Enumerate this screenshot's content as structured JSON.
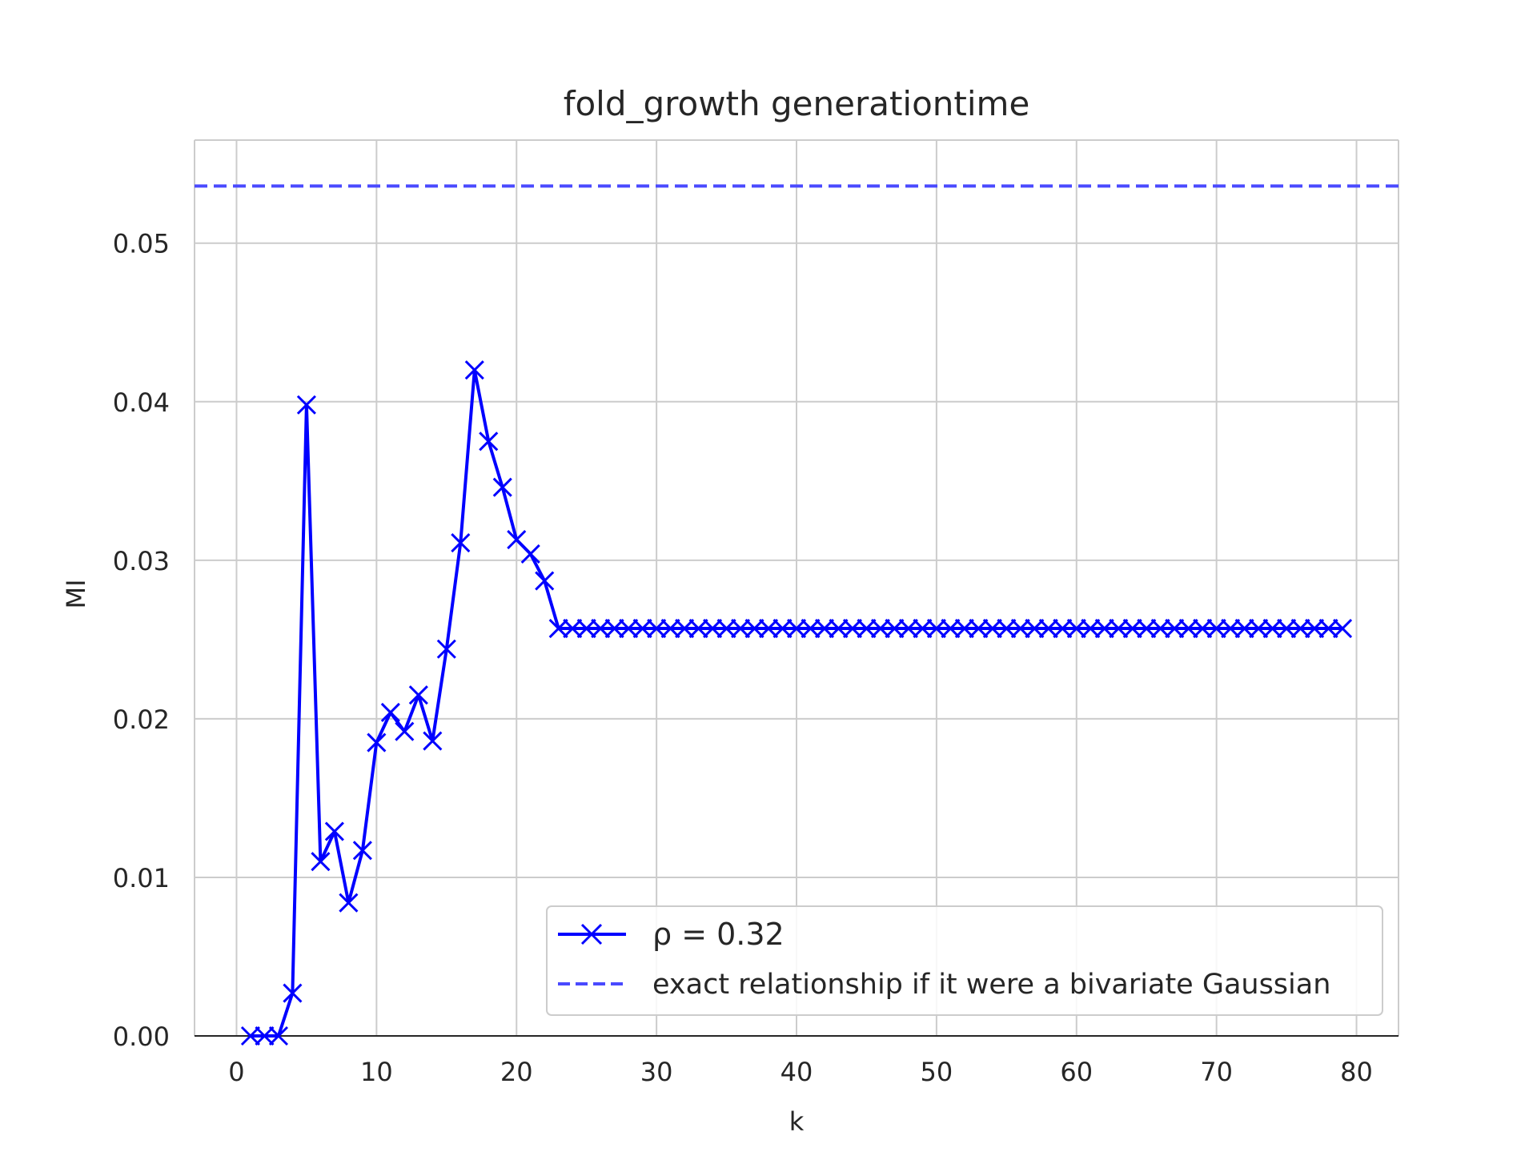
{
  "chart_data": {
    "type": "line",
    "title": "fold_growth generationtime",
    "xlabel": "k",
    "ylabel": "MI",
    "xlim": [
      -3,
      83
    ],
    "ylim": [
      0,
      0.0565
    ],
    "xticks": [
      0,
      10,
      20,
      30,
      40,
      50,
      60,
      70,
      80
    ],
    "xtick_labels": [
      "0",
      "10",
      "20",
      "30",
      "40",
      "50",
      "60",
      "70",
      "80"
    ],
    "yticks": [
      0.0,
      0.01,
      0.02,
      0.03,
      0.04,
      0.05
    ],
    "ytick_labels": [
      "0.00",
      "0.01",
      "0.02",
      "0.03",
      "0.04",
      "0.05"
    ],
    "grid": true,
    "legend_position": "lower-right",
    "series": [
      {
        "name": "ρ = 0.32",
        "legend_label": "ρ = 0.32",
        "style": "line-with-x-markers",
        "color": "#0000ff",
        "x": [
          1,
          2,
          3,
          4,
          5,
          6,
          7,
          8,
          9,
          10,
          11,
          12,
          13,
          14,
          15,
          16,
          17,
          18,
          19,
          20,
          21,
          22,
          23,
          24,
          25,
          26,
          27,
          28,
          29,
          30,
          31,
          32,
          33,
          34,
          35,
          36,
          37,
          38,
          39,
          40,
          41,
          42,
          43,
          44,
          45,
          46,
          47,
          48,
          49,
          50,
          51,
          52,
          53,
          54,
          55,
          56,
          57,
          58,
          59,
          60,
          61,
          62,
          63,
          64,
          65,
          66,
          67,
          68,
          69,
          70,
          71,
          72,
          73,
          74,
          75,
          76,
          77,
          78,
          79
        ],
        "values": [
          0.0,
          0.0,
          0.0,
          0.0027,
          0.0398,
          0.011,
          0.0129,
          0.0084,
          0.0117,
          0.0185,
          0.0204,
          0.0192,
          0.0215,
          0.0186,
          0.0244,
          0.0311,
          0.042,
          0.0375,
          0.0346,
          0.0313,
          0.0304,
          0.0287,
          0.0257,
          0.0257,
          0.0257,
          0.0257,
          0.0257,
          0.0257,
          0.0257,
          0.0257,
          0.0257,
          0.0257,
          0.0257,
          0.0257,
          0.0257,
          0.0257,
          0.0257,
          0.0257,
          0.0257,
          0.0257,
          0.0257,
          0.0257,
          0.0257,
          0.0257,
          0.0257,
          0.0257,
          0.0257,
          0.0257,
          0.0257,
          0.0257,
          0.0257,
          0.0257,
          0.0257,
          0.0257,
          0.0257,
          0.0257,
          0.0257,
          0.0257,
          0.0257,
          0.0257,
          0.0257,
          0.0257,
          0.0257,
          0.0257,
          0.0257,
          0.0257,
          0.0257,
          0.0257,
          0.0257,
          0.0257,
          0.0257,
          0.0257,
          0.0257,
          0.0257,
          0.0257,
          0.0257,
          0.0257,
          0.0257,
          0.0257
        ]
      },
      {
        "name": "exact relationship if it were a bivariate Gaussian",
        "legend_label": "exact relationship if it were a bivariate Gaussian",
        "style": "dashed-horizontal",
        "color": "#4a4aff",
        "y": 0.0536
      }
    ]
  }
}
